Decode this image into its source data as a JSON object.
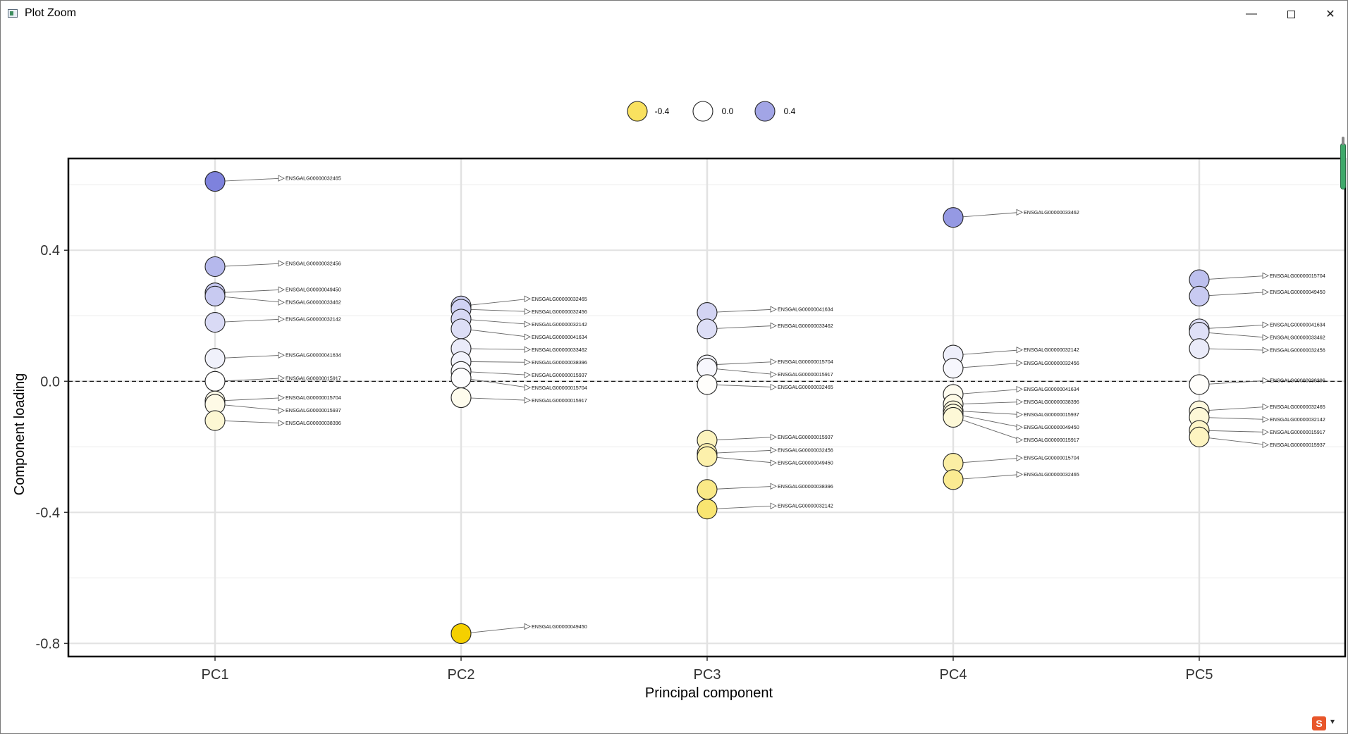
{
  "window": {
    "title": "Plot Zoom",
    "minimize_label": "—",
    "close_label": "✕"
  },
  "colors": {
    "negative": "#f5d000",
    "neutral": "#ffffff",
    "positive": "#6b70d8"
  },
  "chart_data": {
    "type": "scatter",
    "title": "",
    "xlabel": "Principal component",
    "ylabel": "Component loading",
    "categories": [
      "PC1",
      "PC2",
      "PC3",
      "PC4",
      "PC5"
    ],
    "ylim": [
      -0.84,
      0.68
    ],
    "yticks": [
      0.4,
      0.0,
      -0.4,
      -0.8
    ],
    "ytick_labels": [
      "0.4",
      "0.0",
      "-0.4",
      "-0.8"
    ],
    "reference_line": 0.0,
    "grid": true,
    "legend": {
      "position": "top",
      "entries": [
        {
          "label": "-0.4",
          "value": -0.4
        },
        {
          "label": "0.0",
          "value": 0.0
        },
        {
          "label": "0.4",
          "value": 0.4
        }
      ]
    },
    "series": [
      {
        "name": "PC1",
        "points": [
          {
            "gene": "ENSGALG00000032465",
            "loading": 0.61
          },
          {
            "gene": "ENSGALG00000032456",
            "loading": 0.35
          },
          {
            "gene": "ENSGALG00000049450",
            "loading": 0.27
          },
          {
            "gene": "ENSGALG00000033462",
            "loading": 0.26
          },
          {
            "gene": "ENSGALG00000032142",
            "loading": 0.18
          },
          {
            "gene": "ENSGALG00000041634",
            "loading": 0.07
          },
          {
            "gene": "ENSGALG00000015917",
            "loading": 0.0
          },
          {
            "gene": "ENSGALG00000015704",
            "loading": -0.06
          },
          {
            "gene": "ENSGALG00000015937",
            "loading": -0.07
          },
          {
            "gene": "ENSGALG00000038396",
            "loading": -0.12
          }
        ]
      },
      {
        "name": "PC2",
        "points": [
          {
            "gene": "ENSGALG00000032465",
            "loading": 0.23
          },
          {
            "gene": "ENSGALG00000032456",
            "loading": 0.22
          },
          {
            "gene": "ENSGALG00000032142",
            "loading": 0.19
          },
          {
            "gene": "ENSGALG00000041634",
            "loading": 0.16
          },
          {
            "gene": "ENSGALG00000033462",
            "loading": 0.1
          },
          {
            "gene": "ENSGALG00000038396",
            "loading": 0.06
          },
          {
            "gene": "ENSGALG00000015937",
            "loading": 0.03
          },
          {
            "gene": "ENSGALG00000015704",
            "loading": 0.01
          },
          {
            "gene": "ENSGALG00000015917",
            "loading": -0.05
          },
          {
            "gene": "ENSGALG00000049450",
            "loading": -0.77
          }
        ]
      },
      {
        "name": "PC3",
        "points": [
          {
            "gene": "ENSGALG00000041634",
            "loading": 0.21
          },
          {
            "gene": "ENSGALG00000033462",
            "loading": 0.16
          },
          {
            "gene": "ENSGALG00000015704",
            "loading": 0.05
          },
          {
            "gene": "ENSGALG00000015917",
            "loading": 0.04
          },
          {
            "gene": "ENSGALG00000032465",
            "loading": -0.01
          },
          {
            "gene": "ENSGALG00000015937",
            "loading": -0.18
          },
          {
            "gene": "ENSGALG00000032456",
            "loading": -0.22
          },
          {
            "gene": "ENSGALG00000049450",
            "loading": -0.23
          },
          {
            "gene": "ENSGALG00000038396",
            "loading": -0.33
          },
          {
            "gene": "ENSGALG00000032142",
            "loading": -0.39
          }
        ]
      },
      {
        "name": "PC4",
        "points": [
          {
            "gene": "ENSGALG00000033462",
            "loading": 0.5
          },
          {
            "gene": "ENSGALG00000032142",
            "loading": 0.08
          },
          {
            "gene": "ENSGALG00000032456",
            "loading": 0.04
          },
          {
            "gene": "ENSGALG00000041634",
            "loading": -0.04
          },
          {
            "gene": "ENSGALG00000038396",
            "loading": -0.07
          },
          {
            "gene": "ENSGALG00000015937",
            "loading": -0.09
          },
          {
            "gene": "ENSGALG00000049450",
            "loading": -0.1
          },
          {
            "gene": "ENSGALG00000015917",
            "loading": -0.11
          },
          {
            "gene": "ENSGALG00000015704",
            "loading": -0.25
          },
          {
            "gene": "ENSGALG00000032465",
            "loading": -0.3
          }
        ]
      },
      {
        "name": "PC5",
        "points": [
          {
            "gene": "ENSGALG00000015704",
            "loading": 0.31
          },
          {
            "gene": "ENSGALG00000049450",
            "loading": 0.26
          },
          {
            "gene": "ENSGALG00000041634",
            "loading": 0.16
          },
          {
            "gene": "ENSGALG00000033462",
            "loading": 0.15
          },
          {
            "gene": "ENSGALG00000032456",
            "loading": 0.1
          },
          {
            "gene": "ENSGALG00000038396",
            "loading": -0.01
          },
          {
            "gene": "ENSGALG00000032465",
            "loading": -0.09
          },
          {
            "gene": "ENSGALG00000032142",
            "loading": -0.11
          },
          {
            "gene": "ENSGALG00000015917",
            "loading": -0.15
          },
          {
            "gene": "ENSGALG00000015937",
            "loading": -0.17
          }
        ]
      }
    ]
  },
  "tray": {
    "ime_label": "S",
    "arrow_label": "▾"
  }
}
